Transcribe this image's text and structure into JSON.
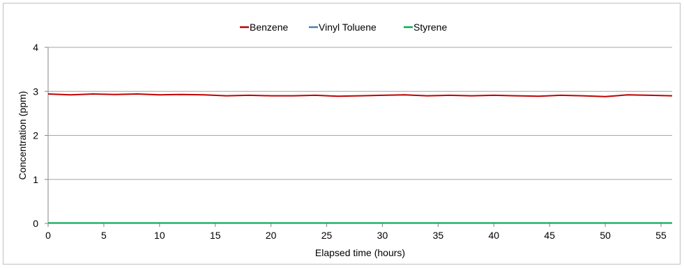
{
  "chart_data": {
    "type": "line",
    "title": "",
    "xlabel": "Elapsed time (hours)",
    "ylabel": "Concentration (ppm)",
    "xlim": [
      0,
      56
    ],
    "ylim": [
      0,
      4
    ],
    "x_ticks": [
      0,
      5,
      10,
      15,
      20,
      25,
      30,
      35,
      40,
      45,
      50,
      55
    ],
    "y_ticks": [
      0,
      1,
      2,
      3,
      4
    ],
    "grid": "horizontal",
    "legend_position": "top-center",
    "x": [
      0,
      2,
      4,
      6,
      8,
      10,
      12,
      14,
      16,
      18,
      20,
      22,
      24,
      26,
      28,
      30,
      32,
      34,
      36,
      38,
      40,
      42,
      44,
      46,
      48,
      50,
      52,
      54,
      56
    ],
    "series": [
      {
        "name": "Benzene",
        "color": "#c00000",
        "values": [
          2.94,
          2.92,
          2.94,
          2.93,
          2.94,
          2.92,
          2.93,
          2.92,
          2.9,
          2.91,
          2.9,
          2.9,
          2.91,
          2.89,
          2.9,
          2.91,
          2.92,
          2.9,
          2.91,
          2.9,
          2.91,
          2.9,
          2.89,
          2.91,
          2.9,
          2.88,
          2.92,
          2.91,
          2.9
        ]
      },
      {
        "name": "Vinyl Toluene",
        "color": "#4a7ebb",
        "values": [
          0.01,
          0.01,
          0.01,
          0.01,
          0.01,
          0.01,
          0.01,
          0.01,
          0.01,
          0.01,
          0.01,
          0.01,
          0.01,
          0.01,
          0.01,
          0.01,
          0.01,
          0.01,
          0.01,
          0.01,
          0.01,
          0.01,
          0.01,
          0.01,
          0.01,
          0.01,
          0.01,
          0.01,
          0.01
        ]
      },
      {
        "name": "Styrene",
        "color": "#00b050",
        "values": [
          0.01,
          0.01,
          0.01,
          0.01,
          0.01,
          0.01,
          0.01,
          0.01,
          0.01,
          0.01,
          0.01,
          0.01,
          0.01,
          0.01,
          0.01,
          0.01,
          0.01,
          0.01,
          0.01,
          0.01,
          0.01,
          0.01,
          0.01,
          0.01,
          0.01,
          0.01,
          0.01,
          0.01,
          0.01
        ]
      }
    ]
  }
}
